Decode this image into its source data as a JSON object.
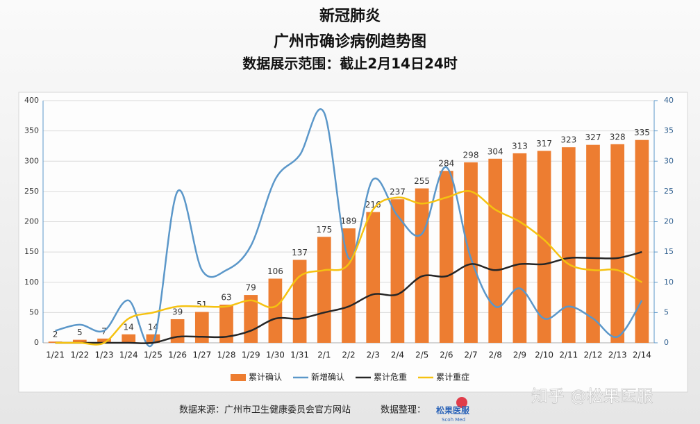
{
  "title_lines": [
    "新冠肺炎",
    "广州市确诊病例趋势图",
    "数据展示范围：截止2月14日24时"
  ],
  "chart_data": {
    "type": "bar",
    "categories": [
      "1/21",
      "1/22",
      "1/23",
      "1/24",
      "1/25",
      "1/26",
      "1/27",
      "1/28",
      "1/29",
      "1/30",
      "1/31",
      "2/1",
      "2/2",
      "2/3",
      "2/4",
      "2/5",
      "2/6",
      "2/7",
      "2/8",
      "2/9",
      "2/10",
      "2/11",
      "2/12",
      "2/13",
      "2/14"
    ],
    "series": [
      {
        "name": "累计确认",
        "type": "bar",
        "color": "#ed7d31",
        "values": [
          2,
          5,
          7,
          14,
          14,
          39,
          51,
          63,
          79,
          106,
          137,
          175,
          189,
          216,
          237,
          255,
          284,
          298,
          304,
          313,
          317,
          323,
          327,
          328,
          335
        ]
      },
      {
        "name": "新增确认",
        "type": "line",
        "axis": "y2",
        "color": "#5b97c9",
        "values": [
          2,
          3,
          2,
          7,
          0,
          25,
          12,
          12,
          16,
          27,
          31,
          38,
          14,
          27,
          21,
          18,
          29,
          14,
          6,
          9,
          4,
          6,
          4,
          1,
          7
        ]
      },
      {
        "name": "累计危重",
        "type": "line",
        "axis": "y2",
        "color": "#262626",
        "values": [
          0,
          0,
          0,
          0,
          0,
          1,
          1,
          1,
          2,
          4,
          4,
          5,
          6,
          8,
          8,
          11,
          11,
          13,
          12,
          13,
          13,
          14,
          14,
          14,
          15
        ]
      },
      {
        "name": "累计重症",
        "type": "line",
        "axis": "y2",
        "color": "#f5c211",
        "values": [
          0,
          0,
          0,
          4,
          5,
          6,
          6,
          6,
          7,
          6,
          11,
          12,
          13,
          22,
          24,
          23,
          24,
          25,
          22,
          20,
          17,
          13,
          12,
          12,
          10
        ]
      }
    ],
    "ylim": [
      0,
      400
    ],
    "yticks": [
      0,
      50,
      100,
      150,
      200,
      250,
      300,
      350,
      400
    ],
    "y2lim": [
      0,
      40
    ],
    "y2ticks": [
      0,
      5,
      10,
      15,
      20,
      25,
      30,
      35,
      40
    ],
    "grid": true,
    "legend": "bottom"
  },
  "footer": {
    "source": "数据来源：广州市卫生健康委员会官方网站",
    "compiler_label": "数据整理：",
    "logo_text": "松果医服",
    "logo_subtext": "Scoh Med"
  },
  "watermark": "知乎 @松果医服"
}
